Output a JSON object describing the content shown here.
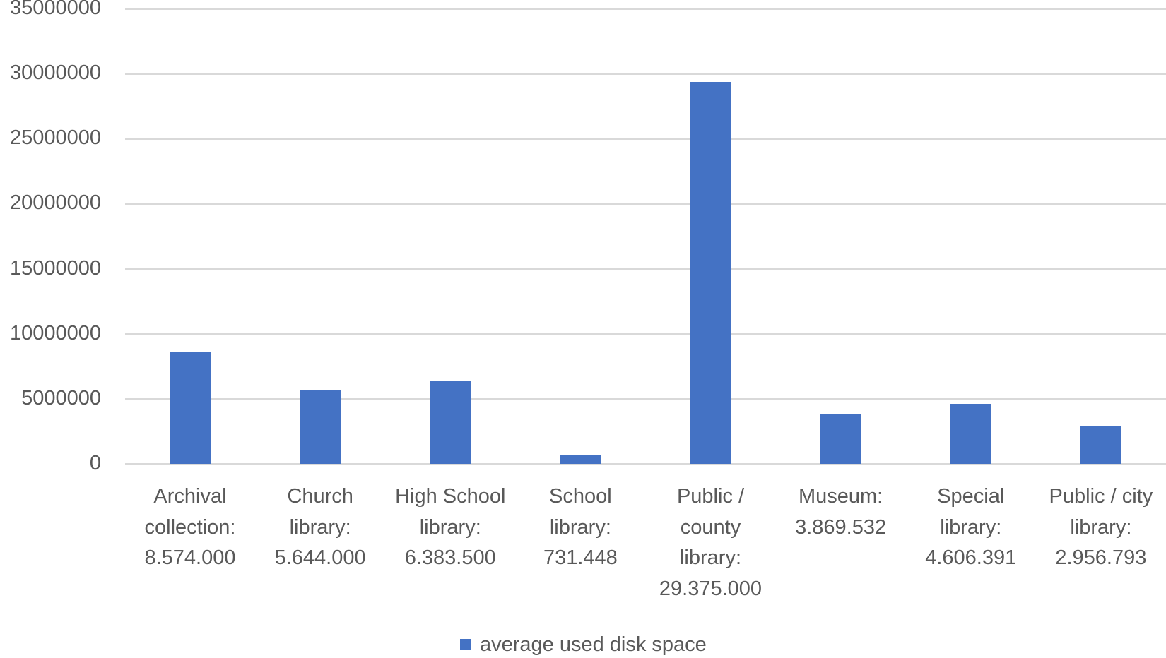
{
  "chart_data": {
    "type": "bar",
    "title": "",
    "xlabel": "",
    "ylabel": "",
    "ylim": [
      0,
      35000000
    ],
    "yticks": [
      0,
      5000000,
      10000000,
      15000000,
      20000000,
      25000000,
      30000000,
      35000000
    ],
    "ytick_labels": [
      "0",
      "5000000",
      "10000000",
      "15000000",
      "20000000",
      "25000000",
      "30000000",
      "35000000"
    ],
    "grid": true,
    "legend_position": "bottom",
    "categories": [
      "Archival collection: 8.574.000",
      "Church library: 5.644.000",
      "High School library: 6.383.500",
      "School library: 731.448",
      "Public / county library: 29.375.000",
      "Museum: 3.869.532",
      "Special library: 4.606.391",
      "Public / city library: 2.956.793"
    ],
    "category_label_lines": [
      [
        "Archival",
        "collection:",
        "8.574.000"
      ],
      [
        "Church",
        "library:",
        "5.644.000"
      ],
      [
        "High School",
        "library:",
        "6.383.500"
      ],
      [
        "School",
        "library:",
        "731.448"
      ],
      [
        "Public /",
        "county",
        "library:",
        "29.375.000"
      ],
      [
        "Museum:",
        "3.869.532"
      ],
      [
        "Special",
        "library:",
        "4.606.391"
      ],
      [
        "Public / city",
        "library:",
        "2.956.793"
      ]
    ],
    "series": [
      {
        "name": "average used disk space",
        "color": "#4472c4",
        "values": [
          8574000,
          5644000,
          6383500,
          731448,
          29375000,
          3869532,
          4606391,
          2956793
        ]
      }
    ]
  },
  "legend": {
    "label": "average used disk space",
    "color": "#4472c4"
  }
}
